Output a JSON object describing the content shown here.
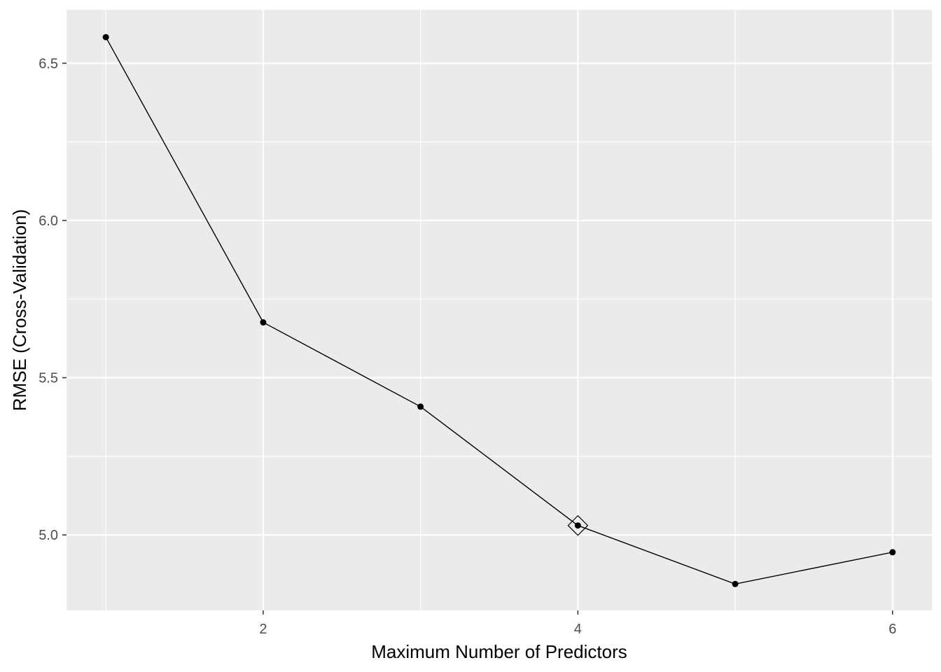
{
  "chart_data": {
    "type": "line",
    "xlabel": "Maximum Number of Predictors",
    "ylabel": "RMSE (Cross-Validation)",
    "x": [
      1,
      2,
      3,
      4,
      5,
      6
    ],
    "series": [
      {
        "values": [
          6.583,
          5.676,
          5.408,
          5.03,
          4.844,
          4.945
        ]
      }
    ],
    "highlight": {
      "x": 4,
      "y": 5.03,
      "shape": "diamond-outline"
    },
    "xlim": [
      0.75,
      6.25
    ],
    "ylim": [
      4.76,
      6.67
    ],
    "x_ticks": [
      2,
      4,
      6
    ],
    "x_tick_labels": [
      "2",
      "4",
      "6"
    ],
    "y_ticks": [
      5.0,
      5.5,
      6.0,
      6.5
    ],
    "y_tick_labels": [
      "5.0",
      "5.5",
      "6.0",
      "6.5"
    ],
    "grid": true,
    "colors": {
      "panel_background": "#ebebeb",
      "grid_major": "#ffffff",
      "line": "#000000",
      "point": "#000000",
      "tick_text": "#4d4d4d",
      "axis_tick": "#333333"
    }
  }
}
